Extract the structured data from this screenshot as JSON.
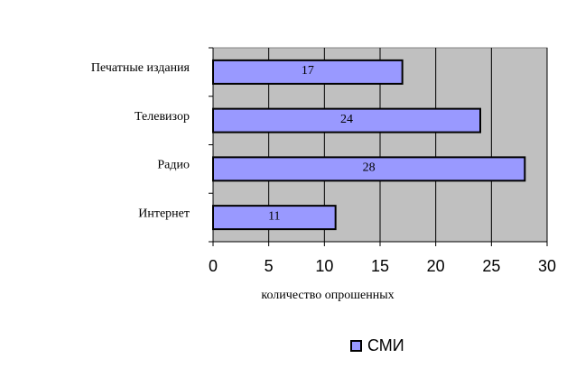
{
  "chart_data": {
    "type": "bar",
    "orientation": "horizontal",
    "categories": [
      "Печатные издания",
      "Телевизор",
      "Радио",
      "Интернет"
    ],
    "series": [
      {
        "name": "СМИ",
        "color": "#9999ff",
        "values": [
          17,
          24,
          28,
          11
        ]
      }
    ],
    "xlabel": "количество опрошенных",
    "xlim": [
      0,
      30
    ],
    "xticks": [
      0,
      5,
      10,
      15,
      20,
      25,
      30
    ],
    "grid": true,
    "plot_background": "#c0c0c0",
    "legend": "bottom"
  }
}
